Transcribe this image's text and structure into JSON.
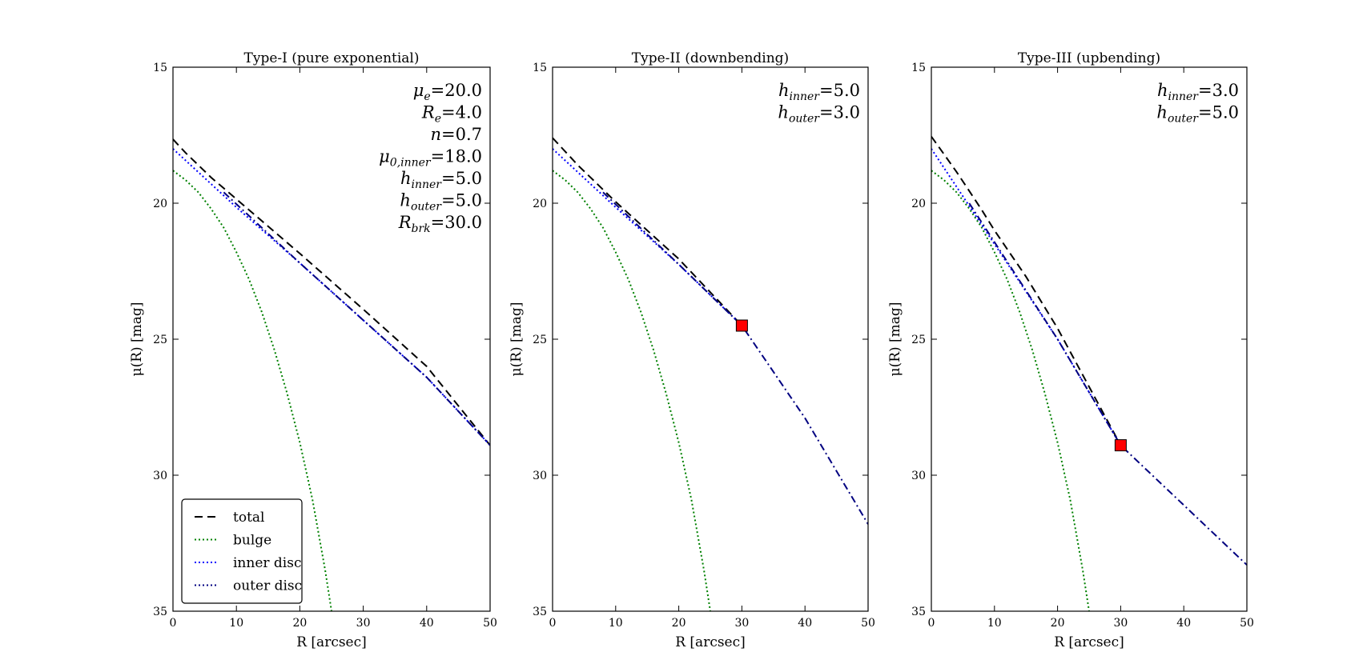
{
  "chart_data": [
    {
      "type": "line",
      "title": "Type-I (pure exponential)",
      "xlabel": "R [arcsec]",
      "ylabel": "μ(R) [mag]",
      "xlim": [
        0,
        50
      ],
      "ylim": [
        35,
        15
      ],
      "y_inverted": true,
      "xticks": [
        "0",
        "10",
        "20",
        "30",
        "40",
        "50"
      ],
      "yticks": [
        "15",
        "20",
        "25",
        "30",
        "35"
      ],
      "series": [
        {
          "name": "total",
          "style": "dashed",
          "color": "#000000",
          "x": [
            0,
            2,
            4,
            6,
            8,
            10,
            15,
            20,
            30,
            40,
            50
          ],
          "y": [
            17.65,
            18.15,
            18.6,
            19.05,
            19.45,
            19.85,
            20.85,
            21.85,
            23.9,
            26.0,
            28.9
          ]
        },
        {
          "name": "bulge",
          "style": "dotted",
          "color": "#008000",
          "x": [
            0,
            2,
            4,
            6,
            8,
            10,
            12,
            14,
            16,
            18,
            20,
            22,
            24,
            25
          ],
          "y": [
            18.8,
            19.15,
            19.6,
            20.2,
            20.9,
            21.8,
            22.8,
            24.0,
            25.4,
            27.0,
            28.8,
            30.9,
            33.5,
            35.0
          ]
        },
        {
          "name": "inner disc",
          "style": "dotted",
          "color": "#0000ff",
          "x": [
            0,
            10,
            20,
            30,
            40,
            50
          ],
          "y": [
            18.0,
            20.15,
            22.2,
            24.3,
            26.4,
            28.9
          ]
        },
        {
          "name": "outer disc",
          "style": "dashdot",
          "color": "#000080",
          "x": [
            8,
            20,
            30,
            40,
            50
          ],
          "y": [
            19.6,
            22.2,
            24.3,
            26.4,
            28.9
          ]
        }
      ],
      "annotations": [
        {
          "symbol": "μ",
          "sub": "e",
          "value": "=20.0"
        },
        {
          "symbol": "R",
          "sub": "e",
          "value": "=4.0"
        },
        {
          "symbol": "n",
          "sub": "",
          "value": "=0.7"
        },
        {
          "symbol": "μ",
          "sub": "0,inner",
          "value": "=18.0"
        },
        {
          "symbol": "h",
          "sub": "inner",
          "value": "=5.0"
        },
        {
          "symbol": "h",
          "sub": "outer",
          "value": "=5.0"
        },
        {
          "symbol": "R",
          "sub": "brk",
          "value": "=30.0"
        }
      ],
      "legend": {
        "placement": "lower-left",
        "entries": [
          "total",
          "bulge",
          "inner disc",
          "outer disc"
        ]
      },
      "break_marker": null
    },
    {
      "type": "line",
      "title": "Type-II (downbending)",
      "xlabel": "R [arcsec]",
      "ylabel": "μ(R) [mag]",
      "xlim": [
        0,
        50
      ],
      "ylim": [
        35,
        15
      ],
      "y_inverted": true,
      "xticks": [
        "0",
        "10",
        "20",
        "30",
        "40",
        "50"
      ],
      "yticks": [
        "15",
        "20",
        "25",
        "30",
        "35"
      ],
      "series": [
        {
          "name": "total",
          "style": "dashed",
          "color": "#000000",
          "x": [
            0,
            2,
            4,
            6,
            8,
            10,
            15,
            20,
            30
          ],
          "y": [
            17.6,
            18.1,
            18.6,
            19.05,
            19.5,
            19.95,
            21.0,
            22.05,
            24.5
          ]
        },
        {
          "name": "bulge",
          "style": "dotted",
          "color": "#008000",
          "x": [
            0,
            2,
            4,
            6,
            8,
            10,
            12,
            14,
            16,
            18,
            20,
            22,
            24,
            25
          ],
          "y": [
            18.8,
            19.15,
            19.6,
            20.2,
            20.9,
            21.8,
            22.8,
            24.0,
            25.4,
            27.0,
            28.8,
            30.9,
            33.5,
            35.0
          ]
        },
        {
          "name": "inner disc",
          "style": "dotted",
          "color": "#0000ff",
          "x": [
            0,
            10,
            20,
            30
          ],
          "y": [
            18.0,
            20.15,
            22.25,
            24.5
          ]
        },
        {
          "name": "outer disc",
          "style": "dashdot",
          "color": "#000080",
          "x": [
            8,
            20,
            30,
            40,
            50
          ],
          "y": [
            19.6,
            22.25,
            24.5,
            27.9,
            31.8
          ]
        }
      ],
      "annotations": [
        {
          "symbol": "h",
          "sub": "inner",
          "value": "=5.0"
        },
        {
          "symbol": "h",
          "sub": "outer",
          "value": "=3.0"
        }
      ],
      "break_marker": {
        "x": 30,
        "y": 24.5,
        "color": "#ff0000"
      }
    },
    {
      "type": "line",
      "title": "Type-III (upbending)",
      "xlabel": "R [arcsec]",
      "ylabel": "μ(R) [mag]",
      "xlim": [
        0,
        50
      ],
      "ylim": [
        35,
        15
      ],
      "y_inverted": true,
      "xticks": [
        "0",
        "10",
        "20",
        "30",
        "40",
        "50"
      ],
      "yticks": [
        "15",
        "20",
        "25",
        "30",
        "35"
      ],
      "series": [
        {
          "name": "total",
          "style": "dashed",
          "color": "#000000",
          "x": [
            0,
            2,
            4,
            6,
            8,
            10,
            15,
            20,
            30
          ],
          "y": [
            17.55,
            18.2,
            18.85,
            19.55,
            20.25,
            21.0,
            22.7,
            24.6,
            28.9
          ]
        },
        {
          "name": "bulge",
          "style": "dotted",
          "color": "#008000",
          "x": [
            0,
            2,
            4,
            6,
            8,
            10,
            12,
            14,
            16,
            18,
            20,
            22,
            24,
            25
          ],
          "y": [
            18.8,
            19.15,
            19.6,
            20.2,
            20.9,
            21.8,
            22.8,
            24.0,
            25.4,
            27.0,
            28.8,
            30.9,
            33.5,
            35.0
          ]
        },
        {
          "name": "inner disc",
          "style": "dotted",
          "color": "#0000ff",
          "x": [
            0,
            10,
            20,
            30
          ],
          "y": [
            18.0,
            21.5,
            25.0,
            28.9
          ]
        },
        {
          "name": "outer disc",
          "style": "dashdot",
          "color": "#000080",
          "x": [
            6,
            20,
            30,
            40,
            50
          ],
          "y": [
            20.0,
            25.0,
            28.9,
            31.1,
            33.3
          ]
        }
      ],
      "annotations": [
        {
          "symbol": "h",
          "sub": "inner",
          "value": "=3.0"
        },
        {
          "symbol": "h",
          "sub": "outer",
          "value": "=5.0"
        }
      ],
      "break_marker": {
        "x": 30,
        "y": 28.9,
        "color": "#ff0000"
      }
    }
  ]
}
